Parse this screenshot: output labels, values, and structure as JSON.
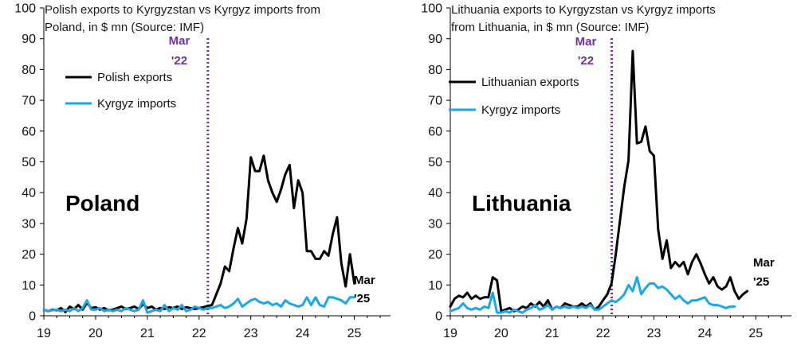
{
  "colors": {
    "exports": "#000000",
    "imports": "#1aa7ec",
    "vline": "#7030a0",
    "axis": "#000000"
  },
  "chart_data": [
    {
      "type": "line",
      "title_lines": [
        "Polish exports to Kyrgyzstan vs Kyrgyz imports from",
        "Poland, in $ mn (Source: IMF)"
      ],
      "big_label": "Poland",
      "xlabel": "",
      "ylabel": "",
      "xlim": [
        19,
        25.7
      ],
      "ylim": [
        0,
        100
      ],
      "x_ticks": [
        19,
        20,
        21,
        22,
        23,
        24,
        25
      ],
      "x_tick_labels": [
        "19",
        "20",
        "21",
        "22",
        "23",
        "24",
        "25"
      ],
      "y_ticks": [
        0,
        10,
        20,
        30,
        40,
        50,
        60,
        70,
        80,
        90,
        100
      ],
      "y_tick_labels": [
        "0",
        "10",
        "20",
        "30",
        "40",
        "50",
        "60",
        "70",
        "80",
        "90",
        "100"
      ],
      "grid": false,
      "legend_position": "upper-left",
      "vline_x": 22.17,
      "vline_label_lines": [
        "Mar",
        "'22"
      ],
      "end_label_lines": [
        "Mar",
        "'25"
      ],
      "series": [
        {
          "name": "Polish exports",
          "role": "exports",
          "start": 19.0,
          "step": 0.0833333,
          "values": [
            2.0,
            1.5,
            2.0,
            1.8,
            2.5,
            1.2,
            3.0,
            2.2,
            3.5,
            2.0,
            4.2,
            2.5,
            2.8,
            2.0,
            2.5,
            1.8,
            2.0,
            2.5,
            3.0,
            2.2,
            2.5,
            3.0,
            2.2,
            3.8,
            2.5,
            3.0,
            2.0,
            2.5,
            2.2,
            2.8,
            2.5,
            3.0,
            2.2,
            2.8,
            2.5,
            2.2,
            2.5,
            2.8,
            3.2,
            3.5,
            7.0,
            10.5,
            16.0,
            14.5,
            22.0,
            28.5,
            23.5,
            31.5,
            51.5,
            47.0,
            47.0,
            52.0,
            44.0,
            40.0,
            37.0,
            41.0,
            46.0,
            49.0,
            35.0,
            44.0,
            40.0,
            21.0,
            21.0,
            18.5,
            18.5,
            21.0,
            19.5,
            26.5,
            32.0,
            17.0,
            9.5,
            20.0,
            10.5
          ]
        },
        {
          "name": "Kyrgyz imports",
          "role": "imports",
          "start": 19.0,
          "step": 0.0833333,
          "values": [
            2.0,
            1.5,
            1.8,
            2.0,
            1.5,
            2.0,
            1.5,
            2.5,
            1.5,
            2.5,
            5.0,
            2.0,
            2.0,
            2.5,
            1.5,
            2.0,
            1.5,
            2.0,
            1.5,
            2.5,
            2.0,
            1.5,
            2.0,
            5.0,
            1.0,
            1.5,
            2.0,
            1.5,
            3.5,
            1.5,
            2.5,
            2.0,
            3.5,
            1.5,
            2.0,
            3.0,
            2.5,
            2.0,
            2.5,
            2.5,
            3.0,
            3.5,
            2.5,
            3.0,
            4.0,
            5.5,
            3.0,
            4.0,
            5.0,
            5.5,
            4.5,
            4.0,
            4.5,
            3.5,
            4.0,
            3.0,
            5.0,
            4.0,
            3.5,
            3.0,
            3.5,
            6.0,
            3.5,
            6.0,
            3.5,
            3.0,
            6.0,
            6.0,
            5.5,
            5.0,
            4.0,
            6.0,
            6.0
          ]
        }
      ]
    },
    {
      "type": "line",
      "title_lines": [
        "Lithuania exports to Kyrgyzstan vs Kyrgyz imports",
        "from Lithuania, in $ mn (Source: IMF)"
      ],
      "big_label": "Lithuania",
      "xlabel": "",
      "ylabel": "",
      "xlim": [
        19,
        25.7
      ],
      "ylim": [
        0,
        100
      ],
      "x_ticks": [
        19,
        20,
        21,
        22,
        23,
        24,
        25
      ],
      "x_tick_labels": [
        "19",
        "20",
        "21",
        "22",
        "23",
        "24",
        "25"
      ],
      "y_ticks": [
        0,
        10,
        20,
        30,
        40,
        50,
        60,
        70,
        80,
        90,
        100
      ],
      "y_tick_labels": [
        "0",
        "10",
        "20",
        "30",
        "40",
        "50",
        "60",
        "70",
        "80",
        "90",
        "100"
      ],
      "grid": false,
      "legend_position": "upper-left",
      "vline_x": 22.17,
      "vline_label_lines": [
        "Mar",
        "'22"
      ],
      "end_label_lines": [
        "Mar",
        "'25"
      ],
      "series": [
        {
          "name": "Lithuanian exports",
          "role": "exports",
          "start": 19.0,
          "step": 0.0833333,
          "values": [
            3.0,
            5.5,
            6.5,
            6.0,
            7.5,
            5.5,
            6.5,
            5.5,
            6.0,
            6.0,
            12.5,
            11.5,
            1.5,
            2.0,
            2.5,
            1.5,
            2.0,
            3.0,
            2.5,
            4.0,
            3.0,
            4.5,
            3.0,
            5.0,
            2.0,
            3.0,
            2.5,
            4.0,
            3.5,
            3.0,
            3.0,
            4.0,
            3.0,
            4.0,
            2.0,
            3.0,
            5.0,
            7.0,
            10.5,
            20.0,
            31.0,
            42.0,
            50.5,
            86.0,
            56.0,
            56.5,
            61.5,
            53.5,
            52.0,
            28.0,
            18.5,
            24.5,
            15.5,
            17.5,
            16.0,
            17.5,
            13.5,
            17.5,
            20.0,
            17.0,
            13.5,
            10.5,
            12.5,
            9.5,
            8.5,
            9.5,
            12.5,
            8.0,
            5.5,
            7.0,
            8.0
          ]
        },
        {
          "name": "Kyrgyz imports",
          "role": "imports",
          "start": 19.0,
          "step": 0.0833333,
          "values": [
            1.5,
            2.0,
            2.5,
            4.0,
            2.5,
            2.0,
            2.5,
            2.0,
            3.0,
            2.5,
            7.5,
            1.0,
            1.0,
            1.5,
            1.0,
            2.0,
            1.5,
            1.0,
            2.0,
            2.5,
            3.5,
            2.0,
            2.5,
            3.5,
            2.0,
            3.0,
            2.5,
            3.0,
            2.5,
            3.0,
            2.5,
            3.0,
            2.5,
            3.5,
            2.0,
            2.0,
            3.0,
            4.0,
            5.0,
            4.5,
            5.5,
            7.0,
            10.0,
            8.0,
            12.5,
            7.0,
            9.0,
            10.5,
            10.5,
            9.0,
            9.5,
            8.5,
            7.0,
            5.5,
            6.5,
            5.0,
            4.0,
            5.0,
            5.0,
            5.5,
            6.0,
            4.0,
            3.5,
            3.5,
            3.0,
            2.5,
            3.0,
            3.0
          ]
        }
      ]
    }
  ]
}
